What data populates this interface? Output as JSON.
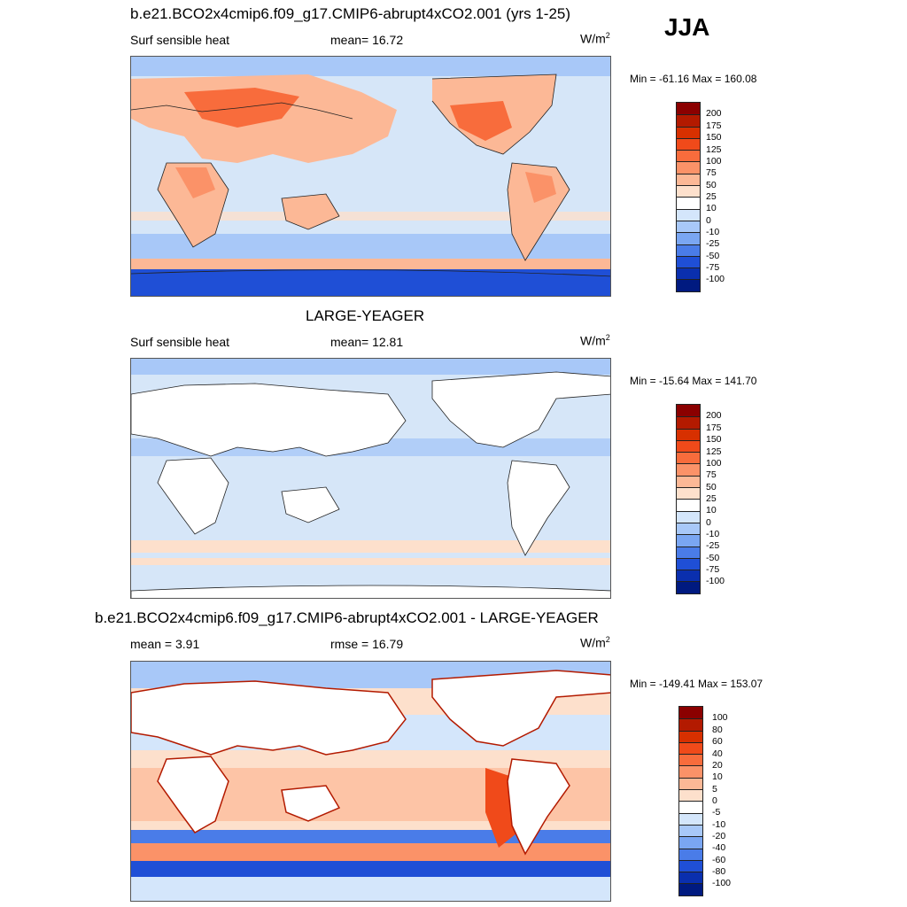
{
  "season": "JJA",
  "panels": [
    {
      "title": "b.e21.BCO2x4cmip6.f09_g17.CMIP6-abrupt4xCO2.001 (yrs 1-25)",
      "variable": "Surf sensible heat",
      "stat": "mean=  16.72",
      "units": "W/m",
      "units_sup": "2",
      "minmax": "Min = -61.16 Max = 160.08",
      "ticks": [
        "200",
        "175",
        "150",
        "125",
        "100",
        "75",
        "50",
        "25",
        "10",
        "0",
        "-10",
        "-25",
        "-50",
        "-75",
        "-100"
      ]
    },
    {
      "title": "LARGE-YEAGER",
      "variable": "Surf sensible heat",
      "stat": "mean=  12.81",
      "units": "W/m",
      "units_sup": "2",
      "minmax": "Min = -15.64 Max = 141.70",
      "ticks": [
        "200",
        "175",
        "150",
        "125",
        "100",
        "75",
        "50",
        "25",
        "10",
        "0",
        "-10",
        "-25",
        "-50",
        "-75",
        "-100"
      ]
    },
    {
      "title": "b.e21.BCO2x4cmip6.f09_g17.CMIP6-abrupt4xCO2.001 - LARGE-YEAGER",
      "variable": "mean =   3.91",
      "stat": "rmse =   16.79",
      "units": "W/m",
      "units_sup": "2",
      "minmax": "Min = -149.41 Max = 153.07",
      "ticks": [
        "100",
        "80",
        "60",
        "40",
        "20",
        "10",
        "5",
        "0",
        "-5",
        "-10",
        "-20",
        "-40",
        "-60",
        "-80",
        "-100"
      ]
    }
  ],
  "colorbar_colors": [
    "#8b0000",
    "#b31a00",
    "#d73000",
    "#f04a1a",
    "#f86c3c",
    "#fb9268",
    "#fcb896",
    "#fde0cc",
    "#ffffff",
    "#d4e6fb",
    "#a8c8f8",
    "#7aa6f2",
    "#4a7ce8",
    "#1f4fd6",
    "#0a2fae",
    "#001a80"
  ]
}
